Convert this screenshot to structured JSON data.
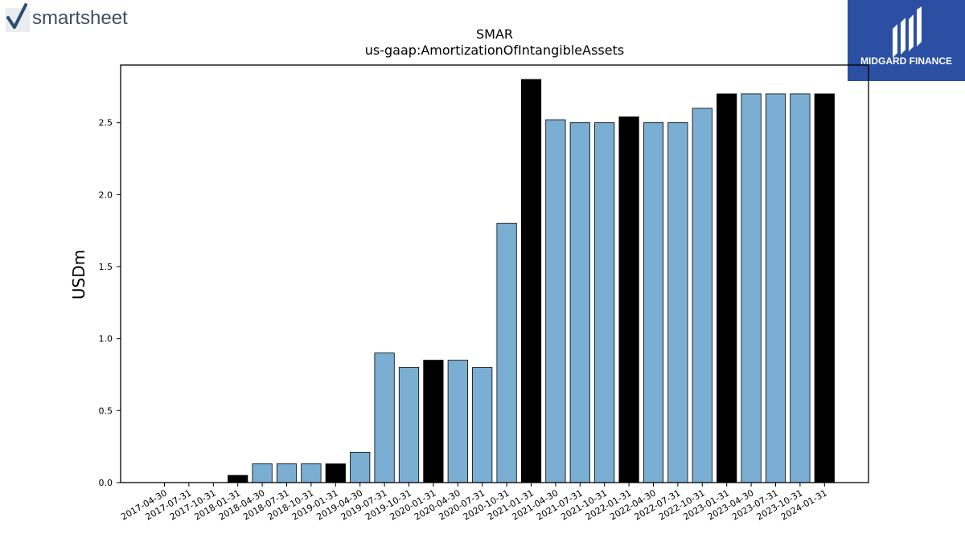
{
  "branding": {
    "left_logo_text": "smartsheet",
    "right_logo_text": "MIDGARD FINANCE",
    "brand_color": "#2a4fa3",
    "left_logo_text_color": "#3d4f62"
  },
  "chart_data": {
    "type": "bar",
    "title": "SMAR",
    "subtitle": "us-gaap:AmortizationOfIntangibleAssets",
    "xlabel": "",
    "ylabel": "USDm",
    "ylim": [
      0,
      2.9
    ],
    "yticks": [
      "0.0",
      "0.5",
      "1.0",
      "1.5",
      "2.0",
      "2.5"
    ],
    "grid": false,
    "colors": {
      "quarter": "#7aaed2",
      "fiscal_year_end": "#000000",
      "edge": "#000000"
    },
    "categories": [
      "2017-04-30",
      "2017-07-31",
      "2017-10-31",
      "2018-01-31",
      "2018-04-30",
      "2018-07-31",
      "2018-10-31",
      "2019-01-31",
      "2019-04-30",
      "2019-07-31",
      "2019-10-31",
      "2020-01-31",
      "2020-04-30",
      "2020-07-31",
      "2020-10-31",
      "2021-01-31",
      "2021-04-30",
      "2021-07-31",
      "2021-10-31",
      "2022-01-31",
      "2022-04-30",
      "2022-07-31",
      "2022-10-31",
      "2023-01-31",
      "2023-04-30",
      "2023-07-31",
      "2023-10-31",
      "2024-01-31"
    ],
    "values": [
      0.0,
      0.0,
      0.0,
      0.05,
      0.13,
      0.13,
      0.13,
      0.13,
      0.21,
      0.9,
      0.8,
      0.85,
      0.85,
      0.8,
      1.8,
      2.8,
      2.52,
      2.5,
      2.5,
      2.54,
      2.5,
      2.5,
      2.6,
      2.7,
      2.7,
      2.7,
      2.7,
      2.7
    ],
    "fiscal_year_end": [
      false,
      false,
      false,
      true,
      false,
      false,
      false,
      true,
      false,
      false,
      false,
      true,
      false,
      false,
      false,
      true,
      false,
      false,
      false,
      true,
      false,
      false,
      false,
      true,
      false,
      false,
      false,
      true
    ]
  }
}
